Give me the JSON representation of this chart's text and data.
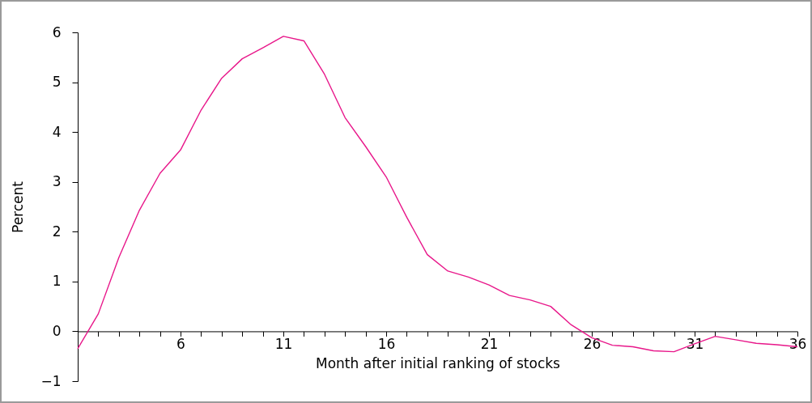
{
  "chart_data": {
    "type": "line",
    "xlabel": "Month after initial ranking of stocks",
    "ylabel": "Percent",
    "x": [
      1,
      2,
      3,
      4,
      5,
      6,
      7,
      8,
      9,
      10,
      11,
      12,
      13,
      14,
      15,
      16,
      17,
      18,
      19,
      20,
      21,
      22,
      23,
      24,
      25,
      26,
      27,
      28,
      29,
      30,
      31,
      32,
      33,
      34,
      35,
      36
    ],
    "series": [
      {
        "color": "#e8178a",
        "values": [
          -0.35,
          0.35,
          1.48,
          2.43,
          3.17,
          3.64,
          4.44,
          5.08,
          5.47,
          5.69,
          5.92,
          5.83,
          5.16,
          4.29,
          3.71,
          3.1,
          2.29,
          1.54,
          1.21,
          1.09,
          0.93,
          0.72,
          0.63,
          0.5,
          0.13,
          -0.13,
          -0.28,
          -0.31,
          -0.39,
          -0.41,
          -0.25,
          -0.1,
          -0.17,
          -0.24,
          -0.27,
          -0.31
        ]
      }
    ],
    "xlim": [
      1,
      36
    ],
    "xticks": [
      {
        "value": 1,
        "label": null
      },
      {
        "value": 2,
        "label": null
      },
      {
        "value": 3,
        "label": null
      },
      {
        "value": 4,
        "label": null
      },
      {
        "value": 5,
        "label": null
      },
      6,
      {
        "value": 7,
        "label": null
      },
      {
        "value": 8,
        "label": null
      },
      {
        "value": 9,
        "label": null
      },
      {
        "value": 10,
        "label": null
      },
      11,
      {
        "value": 12,
        "label": null
      },
      {
        "value": 13,
        "label": null
      },
      {
        "value": 14,
        "label": null
      },
      {
        "value": 15,
        "label": null
      },
      16,
      {
        "value": 17,
        "label": null
      },
      {
        "value": 18,
        "label": null
      },
      {
        "value": 19,
        "label": null
      },
      {
        "value": 20,
        "label": null
      },
      21,
      {
        "value": 22,
        "label": null
      },
      {
        "value": 23,
        "label": null
      },
      {
        "value": 24,
        "label": null
      },
      {
        "value": 25,
        "label": null
      },
      26,
      {
        "value": 27,
        "label": null
      },
      {
        "value": 28,
        "label": null
      },
      {
        "value": 29,
        "label": null
      },
      {
        "value": 30,
        "label": null
      },
      31,
      {
        "value": 32,
        "label": null
      },
      {
        "value": 33,
        "label": null
      },
      {
        "value": 34,
        "label": null
      },
      {
        "value": 35,
        "label": null
      },
      36
    ],
    "ylim": [
      -1,
      6
    ],
    "yticks": [
      {
        "value": -1,
        "label": "−1"
      },
      0,
      1,
      2,
      3,
      4,
      5,
      6
    ],
    "grid": false,
    "line_style": "solid",
    "marker": "none"
  }
}
